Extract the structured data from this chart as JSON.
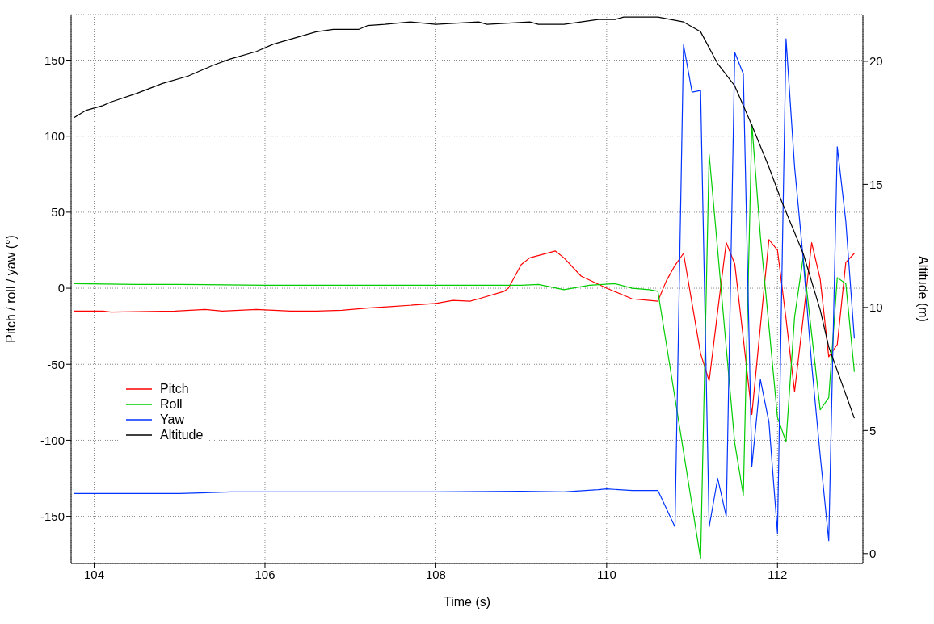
{
  "chart_data": {
    "type": "line",
    "xlabel": "Time (s)",
    "ylabel": "Pitch / roll / yaw (°)",
    "y2label": "Altitude (m)",
    "xlim": [
      103.73,
      113.0
    ],
    "xticks": [
      104,
      106,
      108,
      110,
      112
    ],
    "ylim": [
      -181,
      180
    ],
    "yticks": [
      -150,
      -100,
      -50,
      0,
      50,
      100,
      150
    ],
    "y2lim": [
      -0.4,
      21.9
    ],
    "y2ticks": [
      0,
      5,
      10,
      15,
      20
    ],
    "grid": true,
    "legend": "left",
    "series": [
      {
        "name": "Pitch",
        "color": "#ff0000",
        "x": [
          103.76,
          104.1,
          104.2,
          104.95,
          105.3,
          105.5,
          105.9,
          106.3,
          106.6,
          106.9,
          107.2,
          107.5,
          108.0,
          108.2,
          108.4,
          108.5,
          108.8,
          108.85,
          109.0,
          109.1,
          109.4,
          109.5,
          109.7,
          110.0,
          110.3,
          110.5,
          110.6,
          110.7,
          110.8,
          110.9,
          111.0,
          111.1,
          111.2,
          111.3,
          111.4,
          111.5,
          111.6,
          111.7,
          111.8,
          111.9,
          112.0,
          112.1,
          112.2,
          112.3,
          112.4,
          112.5,
          112.6,
          112.7,
          112.8,
          112.9
        ],
        "values": [
          -15,
          -15,
          -15.7,
          -15,
          -14,
          -15,
          -14,
          -15,
          -15,
          -14.5,
          -13,
          -12,
          -10,
          -8,
          -8.5,
          -7,
          -2,
          0,
          15.6,
          20,
          24.5,
          20,
          8,
          0,
          -7,
          -8,
          -8.5,
          5,
          15,
          23,
          -10,
          -43,
          -61,
          -15,
          30,
          16,
          -33,
          -83,
          -25,
          32,
          25,
          -20,
          -68,
          -20,
          30,
          6,
          -45,
          -37,
          17,
          23
        ]
      },
      {
        "name": "Roll",
        "color": "#00cc00",
        "x": [
          103.76,
          104.5,
          105.0,
          106.0,
          107.0,
          108.0,
          109.0,
          109.2,
          109.5,
          109.8,
          110.1,
          110.3,
          110.5,
          110.6,
          110.7,
          111.1,
          111.2,
          111.3,
          111.4,
          111.5,
          111.6,
          111.7,
          111.8,
          111.9,
          112.0,
          112.1,
          112.2,
          112.3,
          112.4,
          112.5,
          112.6,
          112.7,
          112.8,
          112.9
        ],
        "values": [
          3,
          2.5,
          2.5,
          2,
          2,
          2,
          2,
          2.5,
          -1,
          2,
          3,
          0,
          -1,
          -2,
          -37,
          -178,
          88,
          25,
          -39,
          -102,
          -136,
          108,
          34,
          -25,
          -85,
          -101,
          -19,
          20,
          -30,
          -80,
          -72,
          7,
          3,
          -55
        ]
      },
      {
        "name": "Yaw",
        "color": "#0033ff",
        "x": [
          103.76,
          105.0,
          105.6,
          107.0,
          108.0,
          109.0,
          109.5,
          109.9,
          110.0,
          110.3,
          110.6,
          110.8,
          110.9,
          111.0,
          111.1,
          111.2,
          111.3,
          111.4,
          111.5,
          111.6,
          111.7,
          111.8,
          111.9,
          112.0,
          112.1,
          112.2,
          112.3,
          112.4,
          112.5,
          112.6,
          112.7,
          112.8,
          112.9
        ],
        "values": [
          -135,
          -135,
          -134,
          -134,
          -134,
          -133.5,
          -134,
          -132.5,
          -132,
          -133,
          -133,
          -157,
          160,
          129,
          130,
          -157,
          -125,
          -150,
          155,
          141,
          -117,
          -60,
          -88,
          -161,
          164,
          80,
          20,
          -50,
          -110,
          -166,
          93,
          44,
          -33
        ]
      },
      {
        "name": "Altitude",
        "color": "#000000",
        "axis": "y2",
        "x": [
          103.76,
          103.9,
          104.1,
          104.2,
          104.5,
          104.8,
          105.1,
          105.4,
          105.6,
          105.9,
          106.1,
          106.6,
          106.8,
          107.1,
          107.2,
          107.4,
          107.7,
          108.0,
          108.5,
          108.6,
          109.1,
          109.2,
          109.5,
          109.9,
          110.1,
          110.2,
          110.6,
          110.9,
          111.1,
          111.3,
          111.5,
          111.7,
          111.9,
          112.05,
          112.3,
          112.5,
          112.6,
          112.9
        ],
        "values": [
          17.7,
          18.0,
          18.2,
          18.35,
          18.7,
          19.1,
          19.4,
          19.85,
          20.1,
          20.4,
          20.7,
          21.2,
          21.3,
          21.3,
          21.45,
          21.5,
          21.6,
          21.5,
          21.6,
          21.5,
          21.6,
          21.5,
          21.5,
          21.7,
          21.7,
          21.8,
          21.8,
          21.6,
          21.2,
          19.9,
          19.0,
          17.4,
          15.7,
          14.3,
          12.2,
          9.9,
          8.4,
          5.5
        ]
      }
    ]
  }
}
